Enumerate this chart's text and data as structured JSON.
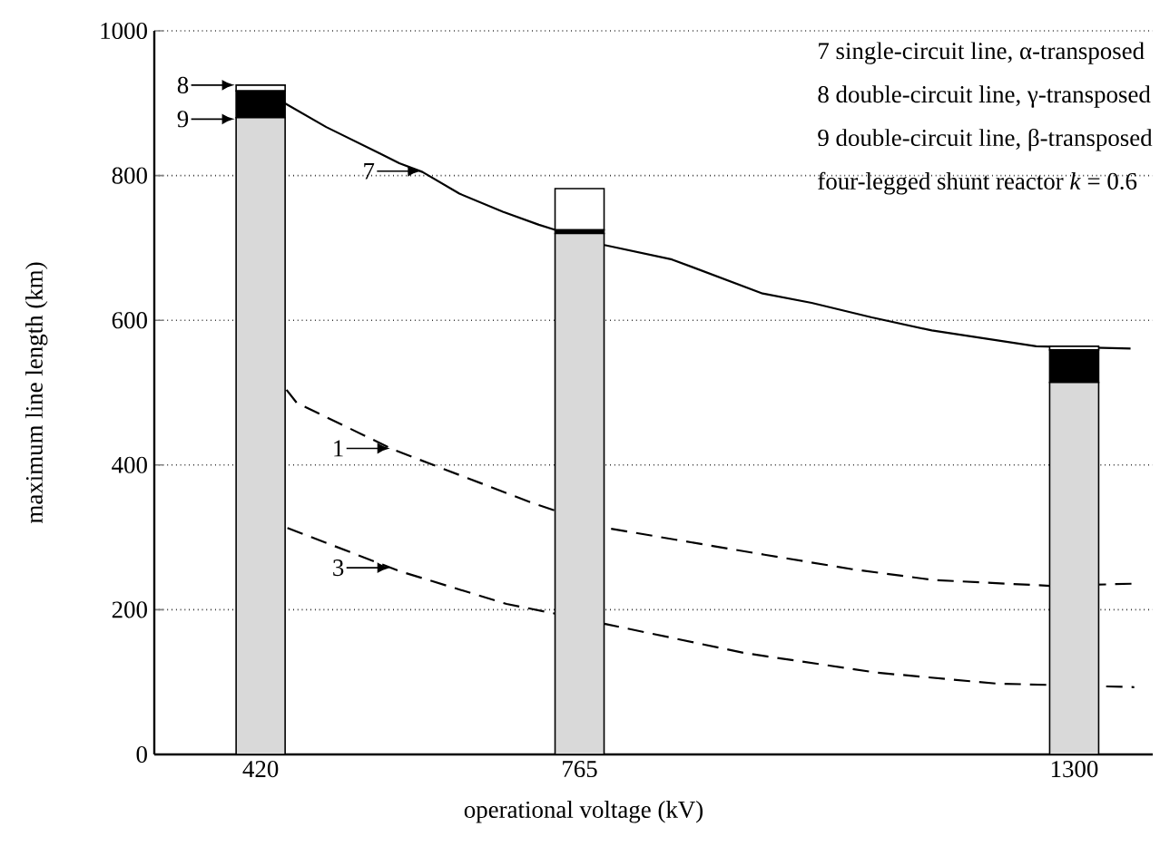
{
  "chart_data": {
    "type": "bar",
    "stacked": true,
    "xlabel": "operational voltage (kV)",
    "ylabel": "maximum line length (km)",
    "xlim": [
      305,
      1385
    ],
    "ylim": [
      0,
      1000
    ],
    "xticks": [
      420,
      765,
      1300
    ],
    "yticks": [
      0,
      200,
      400,
      600,
      800,
      1000
    ],
    "grid": "y",
    "series": [
      {
        "type": "line",
        "color": "#000000",
        "line_style": "solid",
        "x": [
          446,
          491,
          550,
          570,
          595,
          635,
          682,
          721,
          741,
          792,
          865,
          963,
          1016,
          1081,
          1146,
          1259,
          1361
        ],
        "values": [
          900,
          867,
          830,
          817,
          805,
          775,
          750,
          732,
          724,
          704,
          684,
          637,
          624,
          604,
          586,
          564,
          561
        ]
      },
      {
        "type": "line",
        "color": "#000000",
        "line_style": "dashed",
        "x": [
          448,
          459,
          564,
          713,
          794,
          965,
          1060,
          1148,
          1274,
          1365
        ],
        "values": [
          504,
          486,
          421,
          348,
          313,
          276,
          256,
          241,
          233,
          236
        ]
      },
      {
        "type": "line",
        "color": "#000000",
        "line_style": "dashed",
        "x": [
          449,
          571,
          686,
          733,
          794,
          944,
          1087,
          1215,
          1365
        ],
        "values": [
          313,
          253,
          208,
          196,
          180,
          140,
          113,
          98,
          93
        ]
      },
      {
        "color": "#d9d9d9",
        "x": [
          420,
          765,
          1300
        ],
        "values": [
          880,
          720,
          514
        ]
      },
      {
        "color": "#000000",
        "x": [
          420,
          765,
          1300
        ],
        "values": [
          37,
          5,
          45
        ]
      },
      {
        "color": "#ffffff",
        "x": [
          420,
          765,
          1300
        ],
        "values": [
          8,
          57,
          5
        ]
      }
    ],
    "annotations": [
      {
        "text": "8",
        "x": 392,
        "y": 925
      },
      {
        "text": "9",
        "x": 392,
        "y": 878
      },
      {
        "text": "7",
        "x": 593,
        "y": 806
      },
      {
        "text": "1",
        "x": 560,
        "y": 423
      },
      {
        "text": "3",
        "x": 560,
        "y": 258
      },
      "7 single-circuit line,  α-transposed",
      "8 double-circuit line, γ-transposed",
      "9 double-circuit line, β-transposed",
      "four-legged shunt reactor   *k* = 0.6"
    ]
  }
}
